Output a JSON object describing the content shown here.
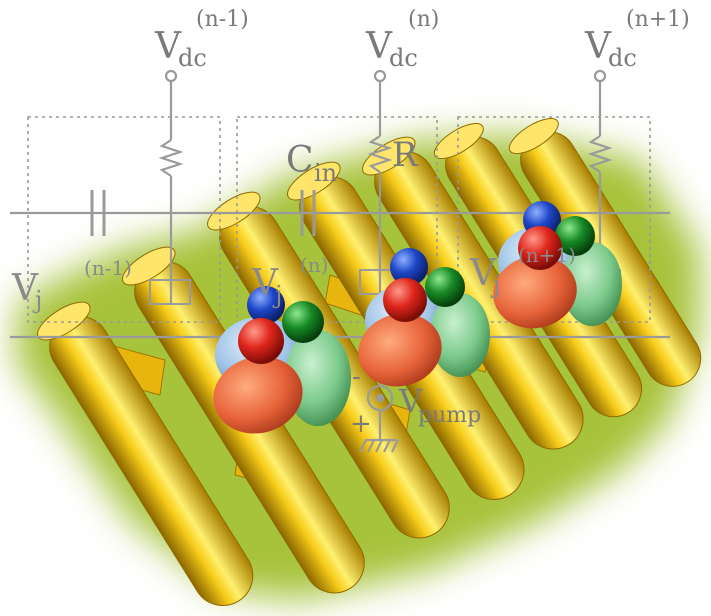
{
  "cells": [
    {
      "vdc_base": "V",
      "vdc_sub": "dc",
      "vdc_sup": "(n-1)",
      "vj_base": "V",
      "vj_sub": "j",
      "vj_sup": "(n-1)"
    },
    {
      "vdc_base": "V",
      "vdc_sub": "dc",
      "vdc_sup": "(n)",
      "vj_base": "V",
      "vj_sub": "j",
      "vj_sup": "(n)"
    },
    {
      "vdc_base": "V",
      "vdc_sub": "dc",
      "vdc_sup": "(n+1)",
      "vj_base": "V",
      "vj_sub": "j",
      "vj_sup": "(n+1)"
    }
  ],
  "cin": {
    "base": "C",
    "sub": "in"
  },
  "resistor_label": "R",
  "pump": {
    "base": "V",
    "sub": "pump",
    "minus": "-",
    "plus": "+"
  },
  "colors": {
    "circuit": "#9a9a9a",
    "halo": "#a7c23a",
    "tube": "#e6b400",
    "orbital_orange": "#e8643a",
    "orbital_green": "#7bc98a",
    "orbital_lightblue": "#9ec3e6",
    "dot_blue": "#1d46c8",
    "dot_red": "#e0261c",
    "dot_green": "#178a24"
  }
}
